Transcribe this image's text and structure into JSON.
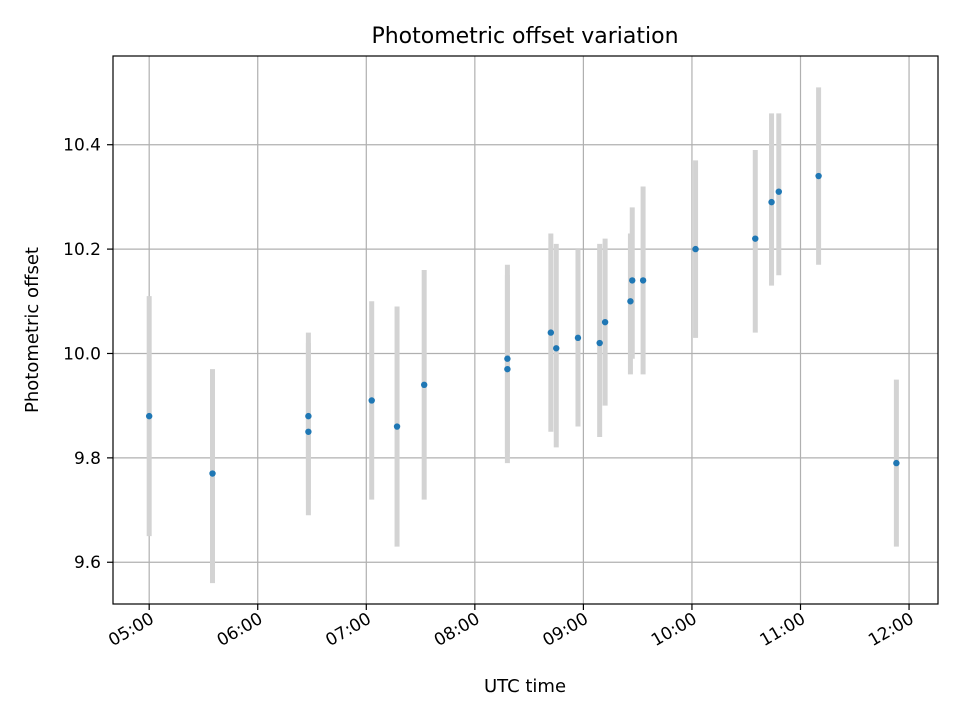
{
  "chart_data": {
    "type": "scatter",
    "title": "Photometric offset variation",
    "xlabel": "UTC time",
    "ylabel": "Photometric offset",
    "x_ticks": [
      "05:00",
      "06:00",
      "07:00",
      "08:00",
      "09:00",
      "10:00",
      "11:00",
      "12:00"
    ],
    "y_ticks": [
      "9.6",
      "9.8",
      "10.0",
      "10.2",
      "10.4"
    ],
    "xlim": [
      "04:40",
      "12:16"
    ],
    "ylim": [
      9.52,
      10.57
    ],
    "grid": true,
    "marker_color": "#1f77b4",
    "errorbar_color": "#d3d3d3",
    "points": [
      {
        "x": "05:00",
        "y": 9.88,
        "ylow": 9.65,
        "yhigh": 10.11
      },
      {
        "x": "05:35",
        "y": 9.77,
        "ylow": 9.56,
        "yhigh": 9.97
      },
      {
        "x": "06:28",
        "y": 9.88,
        "ylow": 9.72,
        "yhigh": 10.04
      },
      {
        "x": "06:28",
        "y": 9.85,
        "ylow": 9.69,
        "yhigh": 10.02
      },
      {
        "x": "07:03",
        "y": 9.91,
        "ylow": 9.72,
        "yhigh": 10.1
      },
      {
        "x": "07:17",
        "y": 9.86,
        "ylow": 9.63,
        "yhigh": 10.09
      },
      {
        "x": "07:32",
        "y": 9.94,
        "ylow": 9.72,
        "yhigh": 10.16
      },
      {
        "x": "08:18",
        "y": 9.99,
        "ylow": 9.81,
        "yhigh": 10.17
      },
      {
        "x": "08:18",
        "y": 9.97,
        "ylow": 9.79,
        "yhigh": 10.15
      },
      {
        "x": "08:42",
        "y": 10.04,
        "ylow": 9.85,
        "yhigh": 10.23
      },
      {
        "x": "08:45",
        "y": 10.01,
        "ylow": 9.82,
        "yhigh": 10.21
      },
      {
        "x": "08:57",
        "y": 10.03,
        "ylow": 9.86,
        "yhigh": 10.2
      },
      {
        "x": "09:09",
        "y": 10.02,
        "ylow": 9.84,
        "yhigh": 10.21
      },
      {
        "x": "09:12",
        "y": 10.06,
        "ylow": 9.9,
        "yhigh": 10.22
      },
      {
        "x": "09:26",
        "y": 10.1,
        "ylow": 9.96,
        "yhigh": 10.23
      },
      {
        "x": "09:27",
        "y": 10.14,
        "ylow": 9.99,
        "yhigh": 10.28
      },
      {
        "x": "09:33",
        "y": 10.14,
        "ylow": 9.96,
        "yhigh": 10.32
      },
      {
        "x": "10:02",
        "y": 10.2,
        "ylow": 10.03,
        "yhigh": 10.37
      },
      {
        "x": "10:35",
        "y": 10.22,
        "ylow": 10.04,
        "yhigh": 10.39
      },
      {
        "x": "10:44",
        "y": 10.29,
        "ylow": 10.13,
        "yhigh": 10.46
      },
      {
        "x": "10:48",
        "y": 10.31,
        "ylow": 10.15,
        "yhigh": 10.46
      },
      {
        "x": "11:10",
        "y": 10.34,
        "ylow": 10.17,
        "yhigh": 10.51
      },
      {
        "x": "11:53",
        "y": 9.79,
        "ylow": 9.63,
        "yhigh": 9.95
      }
    ]
  }
}
